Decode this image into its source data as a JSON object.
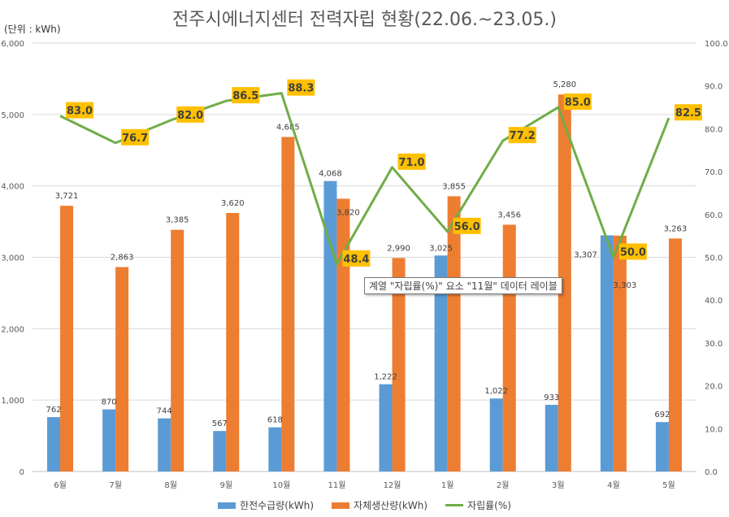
{
  "chart_data": {
    "type": "bar",
    "title": "전주시에너지센터 전력자립 현황(22.06.~23.05.)",
    "unit_label": "(단위 : kWh)",
    "categories": [
      "6월",
      "7월",
      "8월",
      "9월",
      "10월",
      "11월",
      "12월",
      "1월",
      "2월",
      "3월",
      "4월",
      "5월"
    ],
    "series": [
      {
        "name": "한전수급량(kWh)",
        "type": "bar",
        "axis": "left",
        "color": "#5B9BD5",
        "values": [
          762,
          870,
          744,
          567,
          618,
          4068,
          1222,
          3025,
          1022,
          933,
          3307,
          692
        ]
      },
      {
        "name": "자체생산량(kWh)",
        "type": "bar",
        "axis": "left",
        "color": "#ED7D31",
        "values": [
          3721,
          2863,
          3385,
          3620,
          4685,
          3820,
          2990,
          3855,
          3456,
          5280,
          3303,
          3263
        ]
      },
      {
        "name": "자립률(%)",
        "type": "line",
        "axis": "right",
        "color": "#70AD47",
        "values": [
          83.0,
          76.7,
          82.0,
          86.5,
          88.3,
          48.4,
          71.0,
          56.0,
          77.2,
          85.0,
          50.0,
          82.5
        ]
      }
    ],
    "ylim": [
      0,
      6000
    ],
    "y_ticks": [
      "0",
      "1,000",
      "2,000",
      "3,000",
      "4,000",
      "5,000",
      "6,000"
    ],
    "y2lim": [
      0,
      100
    ],
    "y2_ticks": [
      "0.0",
      "10.0",
      "20.0",
      "30.0",
      "40.0",
      "50.0",
      "60.0",
      "70.0",
      "80.0",
      "90.0",
      "100.0"
    ],
    "grid": true,
    "legend_position": "bottom",
    "label_box_color": "#FFC000",
    "tooltip": "계열 \"자립률(%)\" 요소 \"11월\" 데이터 레이블"
  }
}
